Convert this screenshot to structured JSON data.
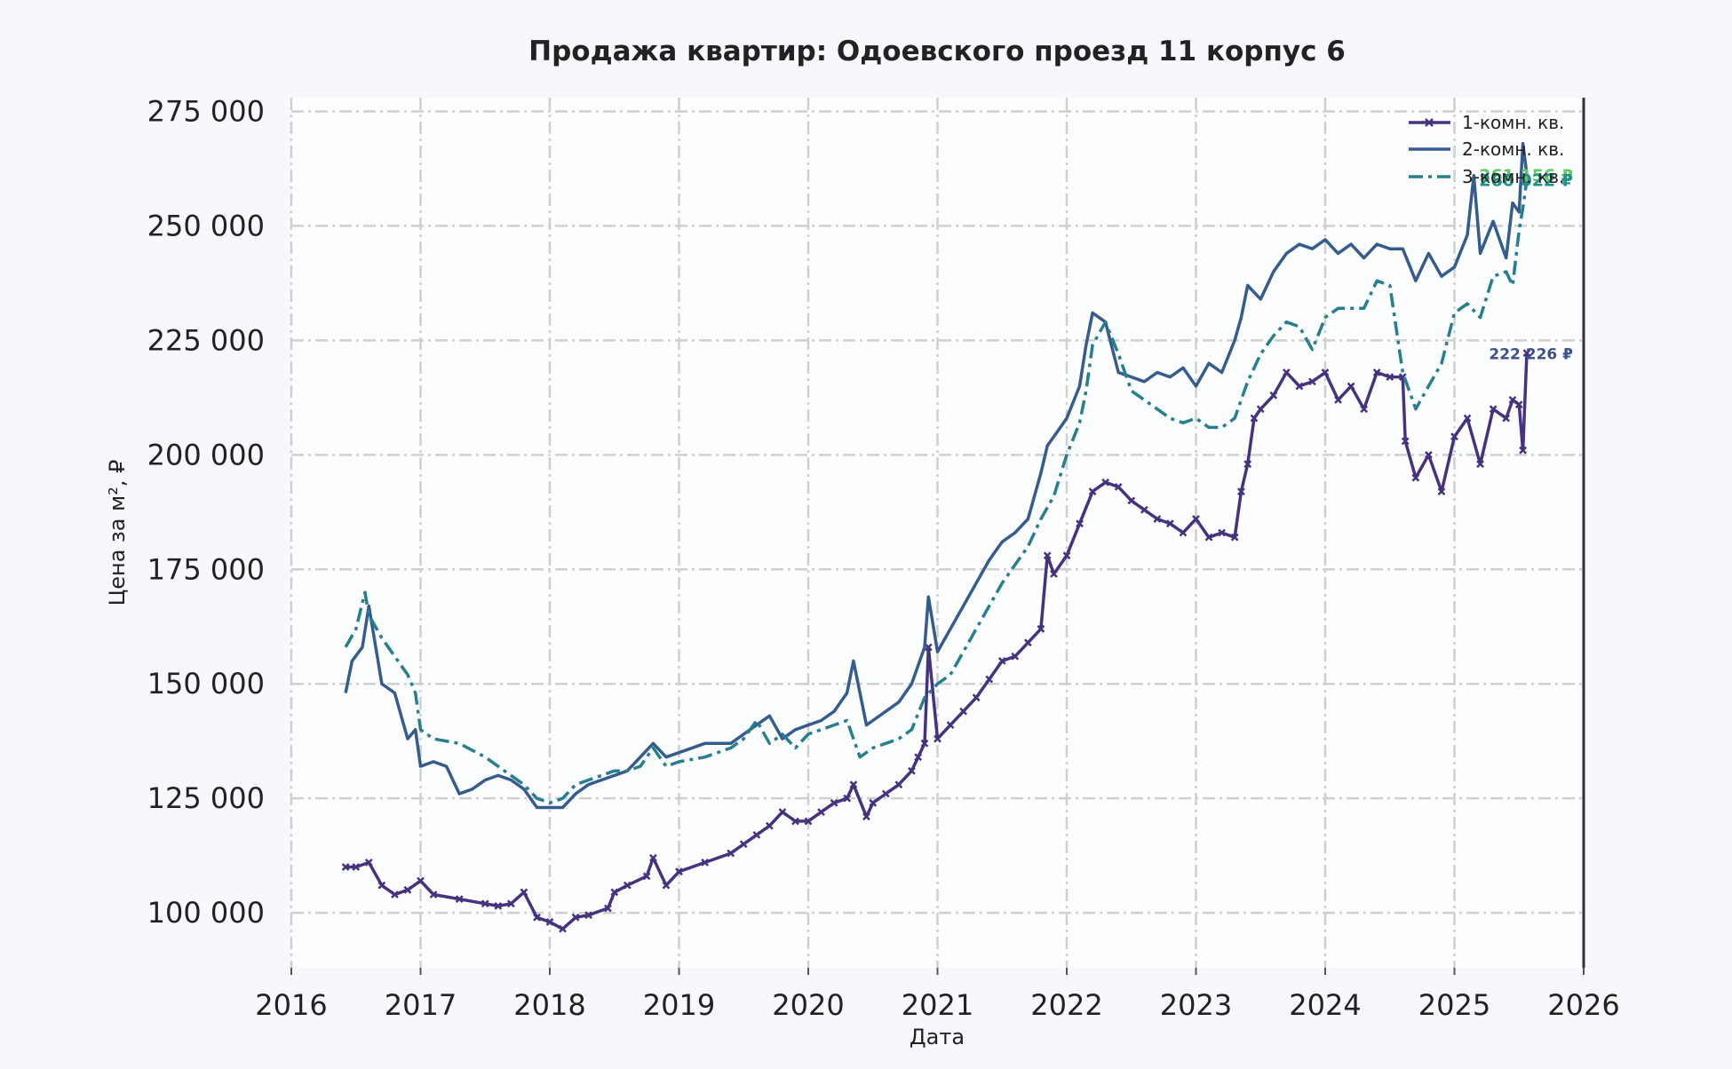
{
  "chart_data": {
    "type": "line",
    "title": "Продажа квартир: Одоевского проезд 11 корпус 6",
    "xlabel": "Дата",
    "ylabel": "Цена за м², ₽",
    "xlim": [
      2016,
      2026
    ],
    "ylim": [
      88000,
      278000
    ],
    "x_ticks": [
      "2016",
      "2017",
      "2018",
      "2019",
      "2020",
      "2021",
      "2022",
      "2023",
      "2024",
      "2025",
      "2026"
    ],
    "y_ticks": [
      "100 000",
      "125 000",
      "150 000",
      "175 000",
      "200 000",
      "225 000",
      "250 000",
      "275 000"
    ],
    "y_tick_values": [
      100000,
      125000,
      150000,
      175000,
      200000,
      225000,
      250000,
      275000
    ],
    "grid": true,
    "legend_position": "top-right",
    "series": [
      {
        "name": "1-комн. кв.",
        "color": "#46327e",
        "style": "solid-with-x-markers",
        "x": [
          2016.42,
          2016.5,
          2016.6,
          2016.7,
          2016.8,
          2016.9,
          2017.0,
          2017.1,
          2017.3,
          2017.5,
          2017.6,
          2017.7,
          2017.8,
          2017.9,
          2018.0,
          2018.1,
          2018.2,
          2018.3,
          2018.45,
          2018.5,
          2018.6,
          2018.75,
          2018.8,
          2018.9,
          2019.0,
          2019.2,
          2019.4,
          2019.5,
          2019.6,
          2019.7,
          2019.8,
          2019.9,
          2020.0,
          2020.1,
          2020.2,
          2020.3,
          2020.35,
          2020.45,
          2020.5,
          2020.6,
          2020.7,
          2020.8,
          2020.85,
          2020.9,
          2020.93,
          2021.0,
          2021.1,
          2021.2,
          2021.3,
          2021.4,
          2021.5,
          2021.6,
          2021.7,
          2021.8,
          2021.85,
          2021.9,
          2022.0,
          2022.1,
          2022.2,
          2022.3,
          2022.4,
          2022.5,
          2022.6,
          2022.7,
          2022.8,
          2022.9,
          2023.0,
          2023.1,
          2023.2,
          2023.3,
          2023.35,
          2023.4,
          2023.45,
          2023.5,
          2023.6,
          2023.7,
          2023.8,
          2023.9,
          2024.0,
          2024.1,
          2024.2,
          2024.3,
          2024.4,
          2024.5,
          2024.6,
          2024.62,
          2024.7,
          2024.8,
          2024.9,
          2025.0,
          2025.1,
          2025.2,
          2025.3,
          2025.4,
          2025.45,
          2025.5,
          2025.53,
          2025.56
        ],
        "values": [
          110000,
          110000,
          111000,
          106000,
          104000,
          105000,
          107000,
          104000,
          103000,
          102000,
          101500,
          102000,
          104500,
          99000,
          98000,
          96500,
          99000,
          99500,
          101000,
          104500,
          106000,
          108000,
          112000,
          106000,
          109000,
          111000,
          113000,
          115000,
          117000,
          119000,
          122000,
          120000,
          120000,
          122000,
          124000,
          125000,
          128000,
          121000,
          124000,
          126000,
          128000,
          131000,
          134000,
          137000,
          158000,
          138000,
          141000,
          144000,
          147000,
          151000,
          155000,
          156000,
          159000,
          162000,
          178000,
          174000,
          178000,
          185000,
          192000,
          194000,
          193000,
          190000,
          188000,
          186000,
          185000,
          183000,
          186000,
          182000,
          183000,
          182000,
          192000,
          198000,
          208000,
          210000,
          213000,
          218000,
          215000,
          216000,
          218000,
          212000,
          215000,
          210000,
          218000,
          217000,
          217000,
          203000,
          195000,
          200000,
          192000,
          204000,
          208000,
          198000,
          210000,
          208000,
          212000,
          211000,
          201000,
          222226
        ]
      },
      {
        "name": "2-комн. кв.",
        "color": "#365c8d",
        "style": "solid",
        "x": [
          2016.42,
          2016.47,
          2016.55,
          2016.6,
          2016.7,
          2016.8,
          2016.9,
          2016.96,
          2017.0,
          2017.1,
          2017.2,
          2017.3,
          2017.4,
          2017.5,
          2017.6,
          2017.7,
          2017.8,
          2017.9,
          2018.0,
          2018.1,
          2018.2,
          2018.3,
          2018.4,
          2018.5,
          2018.6,
          2018.7,
          2018.8,
          2018.9,
          2019.0,
          2019.2,
          2019.4,
          2019.6,
          2019.7,
          2019.8,
          2019.9,
          2020.0,
          2020.1,
          2020.2,
          2020.3,
          2020.35,
          2020.45,
          2020.5,
          2020.6,
          2020.7,
          2020.8,
          2020.9,
          2020.93,
          2021.0,
          2021.1,
          2021.2,
          2021.3,
          2021.4,
          2021.5,
          2021.6,
          2021.7,
          2021.8,
          2021.85,
          2021.9,
          2022.0,
          2022.1,
          2022.15,
          2022.2,
          2022.3,
          2022.4,
          2022.5,
          2022.6,
          2022.7,
          2022.8,
          2022.9,
          2023.0,
          2023.1,
          2023.2,
          2023.3,
          2023.35,
          2023.4,
          2023.5,
          2023.6,
          2023.7,
          2023.8,
          2023.9,
          2024.0,
          2024.1,
          2024.2,
          2024.3,
          2024.4,
          2024.5,
          2024.6,
          2024.7,
          2024.8,
          2024.9,
          2025.0,
          2025.1,
          2025.15,
          2025.2,
          2025.3,
          2025.4,
          2025.45,
          2025.5,
          2025.53,
          2025.56
        ],
        "values": [
          148000,
          155000,
          158000,
          167000,
          150000,
          148000,
          138000,
          140000,
          132000,
          133000,
          132000,
          126000,
          127000,
          129000,
          130000,
          129000,
          127000,
          123000,
          123000,
          123000,
          126000,
          128000,
          129000,
          130000,
          131000,
          134000,
          137000,
          134000,
          135000,
          137000,
          137000,
          141000,
          143000,
          138000,
          140000,
          141000,
          142000,
          144000,
          148000,
          155000,
          141000,
          142000,
          144000,
          146000,
          150000,
          158000,
          169000,
          157000,
          162000,
          167000,
          172000,
          177000,
          181000,
          183000,
          186000,
          196000,
          202000,
          204000,
          208000,
          215000,
          224000,
          231000,
          229000,
          218000,
          217000,
          216000,
          218000,
          217000,
          219000,
          215000,
          220000,
          218000,
          225000,
          230000,
          237000,
          234000,
          240000,
          244000,
          246000,
          245000,
          247000,
          244000,
          246000,
          243000,
          246000,
          245000,
          245000,
          238000,
          244000,
          239000,
          241000,
          248000,
          261000,
          244000,
          251000,
          243000,
          255000,
          253000,
          268000,
          261156
        ]
      },
      {
        "name": "3-комн. кв.",
        "color": "#277f8e",
        "style": "dashdot",
        "x": [
          2016.42,
          2016.5,
          2016.57,
          2016.6,
          2016.7,
          2016.8,
          2016.9,
          2016.96,
          2017.0,
          2017.1,
          2017.3,
          2017.5,
          2017.6,
          2017.7,
          2017.8,
          2017.9,
          2018.0,
          2018.1,
          2018.2,
          2018.3,
          2018.4,
          2018.5,
          2018.6,
          2018.7,
          2018.8,
          2018.9,
          2019.0,
          2019.2,
          2019.4,
          2019.5,
          2019.6,
          2019.7,
          2019.8,
          2019.9,
          2020.0,
          2020.1,
          2020.2,
          2020.3,
          2020.4,
          2020.5,
          2020.6,
          2020.7,
          2020.8,
          2020.9,
          2021.0,
          2021.1,
          2021.2,
          2021.3,
          2021.4,
          2021.5,
          2021.6,
          2021.7,
          2021.8,
          2021.9,
          2022.0,
          2022.1,
          2022.15,
          2022.2,
          2022.3,
          2022.4,
          2022.5,
          2022.6,
          2022.7,
          2022.8,
          2022.9,
          2023.0,
          2023.1,
          2023.2,
          2023.3,
          2023.4,
          2023.5,
          2023.6,
          2023.7,
          2023.8,
          2023.9,
          2024.0,
          2024.1,
          2024.2,
          2024.3,
          2024.4,
          2024.5,
          2024.6,
          2024.7,
          2024.8,
          2024.9,
          2025.0,
          2025.1,
          2025.2,
          2025.3,
          2025.4,
          2025.45,
          2025.5,
          2025.53,
          2025.56
        ],
        "values": [
          158000,
          162000,
          170000,
          165000,
          160000,
          156000,
          152000,
          148000,
          140000,
          138000,
          137000,
          134000,
          132000,
          130000,
          128000,
          125000,
          124000,
          125000,
          128000,
          129000,
          130000,
          131000,
          131000,
          132000,
          136000,
          132000,
          133000,
          134000,
          136000,
          138000,
          142000,
          137000,
          139000,
          136000,
          139000,
          140000,
          141000,
          142000,
          134000,
          136000,
          137000,
          138000,
          140000,
          147000,
          150000,
          152000,
          157000,
          162000,
          167000,
          172000,
          176000,
          180000,
          186000,
          191000,
          200000,
          207000,
          214000,
          224000,
          229000,
          222000,
          214000,
          212000,
          210000,
          208000,
          207000,
          208000,
          206000,
          206000,
          208000,
          216000,
          222000,
          226000,
          229000,
          228000,
          223000,
          230000,
          232000,
          232000,
          232000,
          238000,
          237000,
          218000,
          210000,
          215000,
          220000,
          231000,
          233000,
          230000,
          239000,
          240000,
          237000,
          249000,
          254000,
          260022
        ]
      }
    ],
    "end_labels": [
      {
        "text": "261 156 ₽",
        "value": 261156,
        "color": "#5ec962"
      },
      {
        "text": "260 022 ₽",
        "value": 260022,
        "color": "#21918c"
      },
      {
        "text": "222 226 ₽",
        "value": 222226,
        "color": "#3b528b"
      }
    ]
  }
}
